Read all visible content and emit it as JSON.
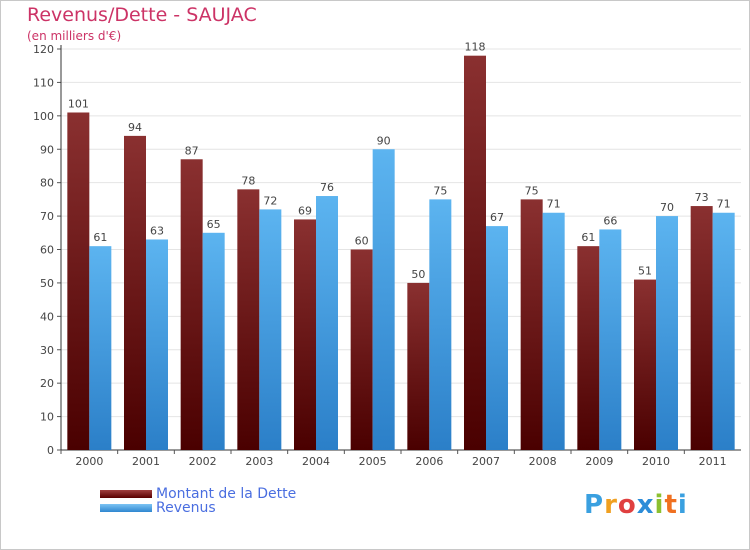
{
  "header": {
    "title": "Revenus/Dette - SAUJAC",
    "subtitle": "(en milliers d'€)"
  },
  "chart_data": {
    "type": "bar",
    "title": "Revenus/Dette - SAUJAC",
    "subtitle": "(en milliers d'€)",
    "xlabel": "",
    "ylabel": "",
    "ylim": [
      0,
      120
    ],
    "yticks": [
      0,
      10,
      20,
      30,
      40,
      50,
      60,
      70,
      80,
      90,
      100,
      110,
      120
    ],
    "grid": true,
    "categories": [
      "2000",
      "2001",
      "2002",
      "2003",
      "2004",
      "2005",
      "2006",
      "2007",
      "2008",
      "2009",
      "2010",
      "2011"
    ],
    "series": [
      {
        "name": "Montant de la Dette",
        "color": "#7a1c1c",
        "values": [
          101,
          94,
          87,
          78,
          69,
          60,
          50,
          118,
          75,
          61,
          51,
          73
        ]
      },
      {
        "name": "Revenus",
        "color": "#4aa3e8",
        "values": [
          61,
          63,
          65,
          72,
          76,
          90,
          75,
          67,
          71,
          66,
          70,
          71
        ]
      }
    ],
    "legend_position": "bottom-left"
  },
  "legend": {
    "items": [
      {
        "label": "Montant de la Dette",
        "color": "#6b0000"
      },
      {
        "label": "Revenus",
        "color": "#3d9be0"
      }
    ]
  },
  "brand": {
    "letters": [
      "P",
      "r",
      "o",
      "x",
      "i",
      "t",
      "i"
    ],
    "colors": [
      "#3aa0e0",
      "#f0a020",
      "#e04040",
      "#2c8cd8",
      "#8cc030",
      "#f07020",
      "#3aa0e0"
    ]
  }
}
